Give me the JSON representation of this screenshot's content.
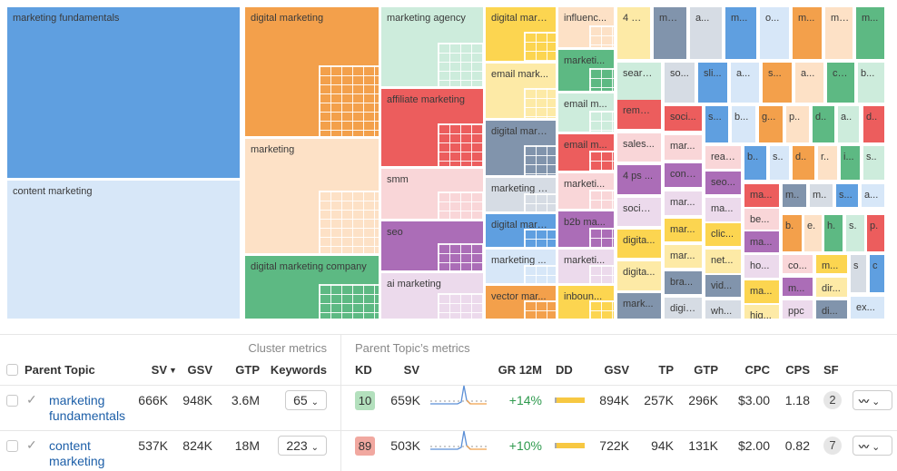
{
  "palette": {
    "blue": "#5f9fe0",
    "lblue": "#d7e7f8",
    "orange": "#f3a04b",
    "peach": "#fde1c6",
    "green": "#5db983",
    "mint": "#cdecdc",
    "yellow": "#fcd550",
    "lyellow": "#fdeaa6",
    "red": "#ec5d5d",
    "pink": "#f9d6d8",
    "slate": "#8194ac",
    "gray": "#d6dce4",
    "purple": "#ab6db7",
    "lav": "#ecdaec"
  },
  "tiles": [
    {
      "label": "marketing fundamentals",
      "color": "blue"
    },
    {
      "label": "content marketing",
      "color": "lblue"
    },
    {
      "label": "digital marketing",
      "color": "orange"
    },
    {
      "label": "marketing",
      "color": "peach"
    },
    {
      "label": "digital marketing company",
      "color": "green"
    },
    {
      "label": "marketing agency",
      "color": "mint"
    },
    {
      "label": "affiliate marketing",
      "color": "red"
    },
    {
      "label": "smm",
      "color": "pink"
    },
    {
      "label": "seo",
      "color": "purple"
    },
    {
      "label": "ai marketing",
      "color": "lav"
    },
    {
      "label": "digital mark...",
      "color": "yellow"
    },
    {
      "label": "email mark...",
      "color": "lyellow"
    },
    {
      "label": "digital mark...",
      "color": "slate"
    },
    {
      "label": "marketing s...",
      "color": "gray"
    },
    {
      "label": "digital mark...",
      "color": "blue"
    },
    {
      "label": "marketing ...",
      "color": "lblue"
    },
    {
      "label": "vector mar...",
      "color": "orange"
    },
    {
      "label": "influenc...",
      "color": "peach"
    },
    {
      "label": "marketi...",
      "color": "green"
    },
    {
      "label": "email m...",
      "color": "mint"
    },
    {
      "label": "email m...",
      "color": "red"
    },
    {
      "label": "marketi...",
      "color": "pink"
    },
    {
      "label": "b2b ma...",
      "color": "purple"
    },
    {
      "label": "marketi...",
      "color": "lav"
    },
    {
      "label": "inboun...",
      "color": "yellow"
    },
    {
      "label": "4 p...",
      "color": "lyellow"
    },
    {
      "label": "ma...",
      "color": "slate"
    },
    {
      "label": "a...",
      "color": "gray"
    },
    {
      "label": "m...",
      "color": "blue"
    },
    {
      "label": "o...",
      "color": "lblue"
    },
    {
      "label": "m...",
      "color": "orange"
    },
    {
      "label": "m...",
      "color": "peach"
    },
    {
      "label": "m...",
      "color": "green"
    },
    {
      "label": "searc...",
      "color": "mint"
    },
    {
      "label": "so...",
      "color": "gray"
    },
    {
      "label": "sli...",
      "color": "blue"
    },
    {
      "label": "a...",
      "color": "lblue"
    },
    {
      "label": "s...",
      "color": "orange"
    },
    {
      "label": "a...",
      "color": "peach"
    },
    {
      "label": "crm",
      "color": "green"
    },
    {
      "label": "b...",
      "color": "mint"
    },
    {
      "label": "remot...",
      "color": "red"
    },
    {
      "label": "sales...",
      "color": "pink"
    },
    {
      "label": "4 ps ...",
      "color": "purple"
    },
    {
      "label": "social...",
      "color": "lav"
    },
    {
      "label": "digita...",
      "color": "yellow"
    },
    {
      "label": "digita...",
      "color": "lyellow"
    },
    {
      "label": "mark...",
      "color": "slate"
    },
    {
      "label": "soci...",
      "color": "red"
    },
    {
      "label": "mar...",
      "color": "pink"
    },
    {
      "label": "cont...",
      "color": "purple"
    },
    {
      "label": "mar...",
      "color": "lav"
    },
    {
      "label": "mar...",
      "color": "yellow"
    },
    {
      "label": "mar...",
      "color": "lyellow"
    },
    {
      "label": "bra...",
      "color": "slate"
    },
    {
      "label": "digit...",
      "color": "gray"
    },
    {
      "label": "s...",
      "color": "blue"
    },
    {
      "label": "b...",
      "color": "lblue"
    },
    {
      "label": "g...",
      "color": "orange"
    },
    {
      "label": "p..",
      "color": "peach"
    },
    {
      "label": "d..",
      "color": "green"
    },
    {
      "label": "a..",
      "color": "mint"
    },
    {
      "label": "d..",
      "color": "red"
    },
    {
      "label": "real...",
      "color": "pink"
    },
    {
      "label": "seo...",
      "color": "purple"
    },
    {
      "label": "ma...",
      "color": "lav"
    },
    {
      "label": "clic...",
      "color": "yellow"
    },
    {
      "label": "net...",
      "color": "lyellow"
    },
    {
      "label": "vid...",
      "color": "slate"
    },
    {
      "label": "wh...",
      "color": "gray"
    },
    {
      "label": "b..",
      "color": "blue"
    },
    {
      "label": "s..",
      "color": "lblue"
    },
    {
      "label": "d..",
      "color": "orange"
    },
    {
      "label": "r..",
      "color": "peach"
    },
    {
      "label": "i...",
      "color": "green"
    },
    {
      "label": "s..",
      "color": "mint"
    },
    {
      "label": "ma...",
      "color": "red"
    },
    {
      "label": "be...",
      "color": "pink"
    },
    {
      "label": "ma...",
      "color": "purple"
    },
    {
      "label": "ho...",
      "color": "lav"
    },
    {
      "label": "ma...",
      "color": "yellow"
    },
    {
      "label": "hig...",
      "color": "lyellow"
    },
    {
      "label": "m..",
      "color": "slate"
    },
    {
      "label": "m..",
      "color": "gray"
    },
    {
      "label": "s...",
      "color": "blue"
    },
    {
      "label": "a...",
      "color": "lblue"
    },
    {
      "label": "b.",
      "color": "orange"
    },
    {
      "label": "e.",
      "color": "peach"
    },
    {
      "label": "h.",
      "color": "green"
    },
    {
      "label": "s.",
      "color": "mint"
    },
    {
      "label": "p.",
      "color": "red"
    },
    {
      "label": "co...",
      "color": "pink"
    },
    {
      "label": "m...",
      "color": "yellow"
    },
    {
      "label": "s",
      "color": "gray"
    },
    {
      "label": "c",
      "color": "blue"
    },
    {
      "label": "m...",
      "color": "purple"
    },
    {
      "label": "dir...",
      "color": "lyellow"
    },
    {
      "label": "ppc",
      "color": "lav"
    },
    {
      "label": "di...",
      "color": "slate"
    },
    {
      "label": "ex...",
      "color": "lblue"
    }
  ],
  "table": {
    "cluster_group": "Cluster metrics",
    "parent_group": "Parent Topic’s metrics",
    "headers": {
      "parent_topic": "Parent Topic",
      "sv": "SV",
      "gsv": "GSV",
      "gtp": "GTP",
      "keywords": "Keywords",
      "kd": "KD",
      "psv": "SV",
      "gr": "GR 12M",
      "dd": "DD",
      "pgsv": "GSV",
      "tp": "TP",
      "pgtp": "GTP",
      "cpc": "CPC",
      "cps": "CPS",
      "sf": "SF"
    },
    "rows": [
      {
        "topic": "marketing fundamentals",
        "sv": "666K",
        "gsv": "948K",
        "gtp": "3.6M",
        "keywords": "65",
        "kd": "10",
        "kd_color": "#b3e0bd",
        "psv": "659K",
        "gr": "+14%",
        "pgsv": "894K",
        "tp": "257K",
        "pgtp": "296K",
        "cpc": "$3.00",
        "cps": "1.18",
        "sf": "2"
      },
      {
        "topic": "content marketing",
        "sv": "537K",
        "gsv": "824K",
        "gtp": "18M",
        "keywords": "223",
        "kd": "89",
        "kd_color": "#f1a8a0",
        "psv": "503K",
        "gr": "+10%",
        "pgsv": "722K",
        "tp": "94K",
        "pgtp": "131K",
        "cpc": "$2.00",
        "cps": "0.82",
        "sf": "7"
      }
    ]
  }
}
